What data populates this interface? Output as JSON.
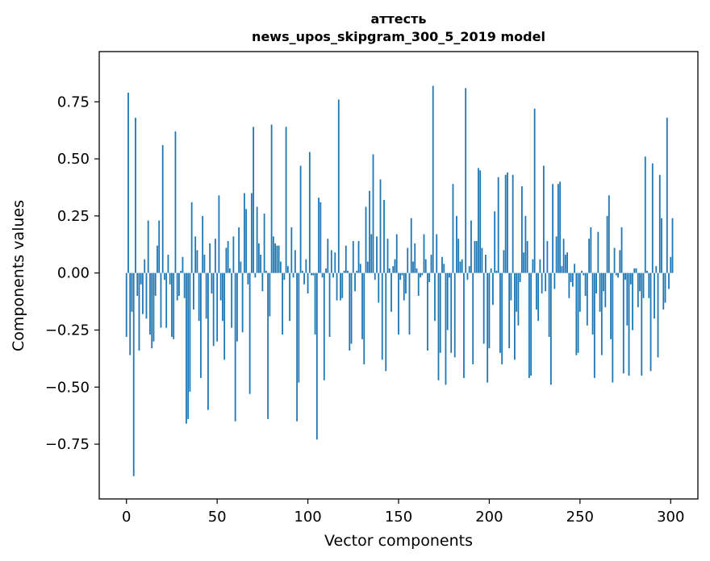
{
  "chart_data": {
    "type": "bar",
    "title_line1": "аттесть",
    "title_line2": "news_upos_skipgram_300_5_2019 model",
    "xlabel": "Vector components",
    "ylabel": "Components values",
    "xlim": [
      -15,
      315
    ],
    "ylim": [
      -0.99,
      0.97
    ],
    "x_ticks": [
      0,
      50,
      100,
      150,
      200,
      250,
      300
    ],
    "x_tick_labels": [
      "0",
      "50",
      "100",
      "150",
      "200",
      "250",
      "300"
    ],
    "y_ticks": [
      -0.75,
      -0.5,
      -0.25,
      0.0,
      0.25,
      0.5,
      0.75
    ],
    "y_tick_labels": [
      "−0.75",
      "−0.50",
      "−0.25",
      "0.00",
      "0.25",
      "0.50",
      "0.75"
    ],
    "bar_color": "#1f77b4",
    "grid": false,
    "series": [
      {
        "values": [
          -0.28,
          0.79,
          -0.36,
          -0.17,
          -0.89,
          0.68,
          -0.1,
          -0.34,
          -0.05,
          -0.18,
          0.06,
          -0.2,
          0.23,
          -0.27,
          -0.33,
          -0.3,
          -0.1,
          0.12,
          0.23,
          -0.24,
          0.56,
          -0.03,
          -0.24,
          0.08,
          -0.05,
          -0.28,
          -0.29,
          0.62,
          -0.12,
          -0.1,
          0.01,
          0.07,
          -0.11,
          -0.66,
          -0.64,
          -0.52,
          0.31,
          -0.16,
          0.16,
          0.1,
          -0.21,
          -0.46,
          0.25,
          0.08,
          -0.2,
          -0.6,
          0.13,
          -0.09,
          -0.32,
          0.15,
          -0.3,
          0.34,
          -0.12,
          -0.21,
          -0.38,
          0.11,
          0.14,
          0.02,
          -0.24,
          0.16,
          -0.65,
          -0.3,
          0.2,
          0.05,
          -0.26,
          0.35,
          0.28,
          -0.05,
          -0.53,
          0.35,
          0.64,
          -0.02,
          0.29,
          0.13,
          0.08,
          -0.08,
          0.26,
          0.01,
          -0.64,
          -0.19,
          0.65,
          0.16,
          0.13,
          0.12,
          0.12,
          0.05,
          -0.27,
          -0.03,
          0.64,
          0.03,
          -0.21,
          0.2,
          -0.02,
          0.1,
          -0.65,
          -0.48,
          0.47,
          0.01,
          -0.05,
          0.06,
          -0.09,
          0.53,
          -0.01,
          -0.01,
          -0.27,
          -0.73,
          0.33,
          0.31,
          -0.02,
          -0.47,
          0.02,
          0.15,
          -0.28,
          0.1,
          -0.02,
          0.09,
          -0.12,
          0.76,
          -0.12,
          -0.11,
          0.01,
          0.12,
          0.01,
          -0.34,
          -0.31,
          0.14,
          -0.08,
          0.01,
          0.14,
          0.04,
          -0.29,
          -0.4,
          0.29,
          0.05,
          0.36,
          0.17,
          0.52,
          -0.03,
          0.16,
          -0.13,
          0.41,
          -0.38,
          0.32,
          -0.43,
          0.15,
          0.02,
          -0.17,
          0.03,
          0.06,
          0.17,
          -0.27,
          -0.03,
          -0.01,
          -0.12,
          -0.09,
          0.11,
          -0.27,
          0.24,
          0.05,
          0.13,
          0.02,
          -0.1,
          -0.02,
          -0.01,
          0.17,
          0.06,
          -0.34,
          -0.04,
          0.08,
          0.82,
          -0.21,
          0.17,
          -0.47,
          -0.35,
          0.07,
          0.04,
          -0.49,
          -0.25,
          -0.02,
          -0.35,
          0.39,
          -0.37,
          0.25,
          0.15,
          0.05,
          0.06,
          -0.46,
          0.81,
          -0.03,
          0.03,
          0.23,
          -0.4,
          0.14,
          0.14,
          0.46,
          0.45,
          0.11,
          -0.31,
          0.08,
          -0.48,
          -0.33,
          0.02,
          -0.14,
          0.27,
          0.01,
          0.42,
          -0.35,
          -0.4,
          0.1,
          0.43,
          0.44,
          -0.33,
          -0.12,
          0.43,
          -0.38,
          -0.17,
          -0.23,
          -0.04,
          0.38,
          0.09,
          0.25,
          0.14,
          -0.46,
          -0.45,
          0.06,
          0.72,
          -0.16,
          -0.21,
          0.06,
          -0.09,
          0.47,
          -0.08,
          0.14,
          -0.28,
          -0.49,
          0.39,
          -0.07,
          0.16,
          0.39,
          0.4,
          0.03,
          0.15,
          0.08,
          0.09,
          -0.11,
          -0.04,
          -0.06,
          0.04,
          -0.36,
          -0.35,
          -0.17,
          0.01,
          -0.01,
          -0.1,
          -0.23,
          0.15,
          0.2,
          -0.27,
          -0.46,
          -0.09,
          0.18,
          -0.17,
          -0.36,
          -0.08,
          -0.15,
          0.25,
          0.34,
          -0.29,
          -0.48,
          0.11,
          -0.01,
          -0.02,
          0.1,
          0.2,
          -0.44,
          -0.03,
          -0.23,
          -0.45,
          -0.05,
          -0.25,
          0.02,
          0.02,
          -0.15,
          -0.08,
          -0.45,
          -0.11,
          0.51,
          0.01,
          -0.11,
          -0.43,
          0.48,
          -0.2,
          0.03,
          -0.37,
          0.43,
          0.24,
          -0.16,
          -0.13,
          0.68,
          -0.07,
          0.07,
          0.24
        ]
      }
    ]
  }
}
